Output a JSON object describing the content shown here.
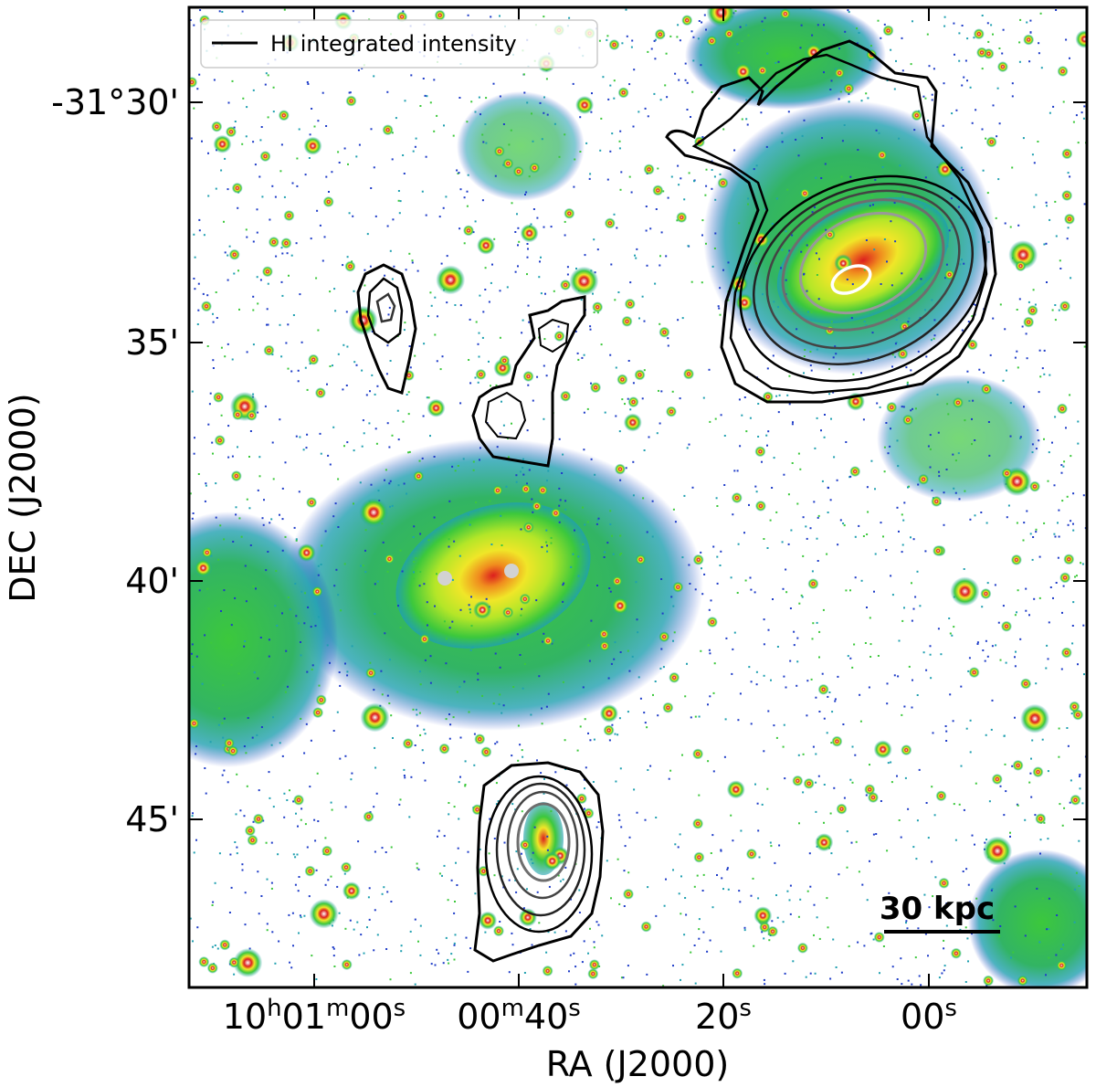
{
  "legend": {
    "label": "HI integrated intensity"
  },
  "scalebar": {
    "label": "30 kpc"
  },
  "axes": {
    "xlabel": "RA (J2000)",
    "ylabel": "DEC (J2000)",
    "y_ticks": [
      "-31°30'",
      "35'",
      "40'",
      "45'"
    ],
    "x_ticks": [
      {
        "main": "10",
        "sup1": "h",
        "mid": "01",
        "sup2": "m",
        "end": "00",
        "sup3": "s"
      },
      {
        "main": "00",
        "sup1": "m",
        "mid": "40",
        "sup2": "s"
      },
      {
        "main": "20",
        "sup1": "s"
      },
      {
        "main": "00",
        "sup1": "s"
      }
    ]
  },
  "colors": {
    "background": "#ffffff",
    "faint": "#1e3cc8",
    "low": "#20a0b0",
    "mid": "#3cc83c",
    "bright": "#b4e628",
    "brighter": "#f0e628",
    "high": "#f08c1e",
    "peak": "#dc1e1e",
    "contour_outer": "#000000",
    "contour_inner": "#6e6e6e",
    "contour_peak": "#ffffff"
  }
}
